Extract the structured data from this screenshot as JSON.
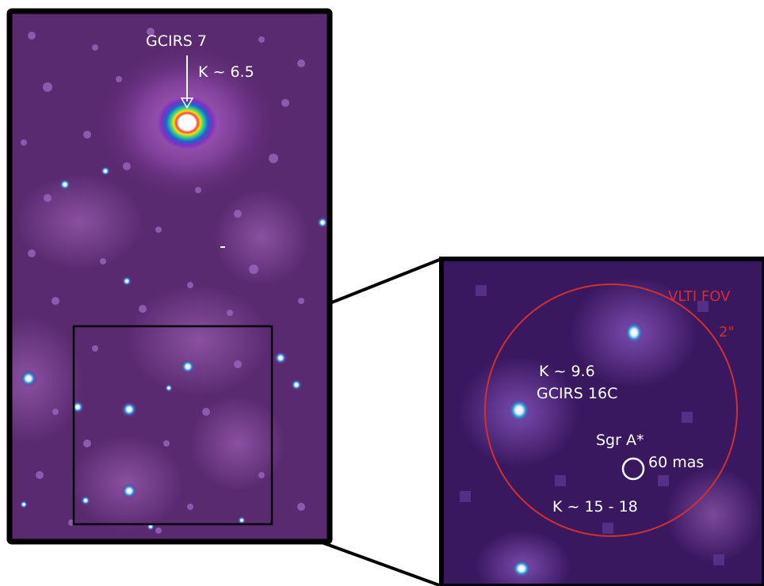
{
  "left_panel": {
    "star_name": "GCIRS 7",
    "star_mag": "K ~ 6.5",
    "colors": {
      "background": "#5a2a70",
      "frame": "#000000"
    }
  },
  "zoom_panel": {
    "fov_label": "VLTI FOV",
    "fov_size": "2\"",
    "star_mag": "K ~ 9.6",
    "star_name": "GCIRS 16C",
    "source_name": "Sgr A*",
    "beam_size": "60 mas",
    "faint_mag": "K ~ 15 - 18",
    "colors": {
      "background": "#3a1860",
      "fov_circle": "#d03030",
      "text": "#ffffff"
    }
  }
}
